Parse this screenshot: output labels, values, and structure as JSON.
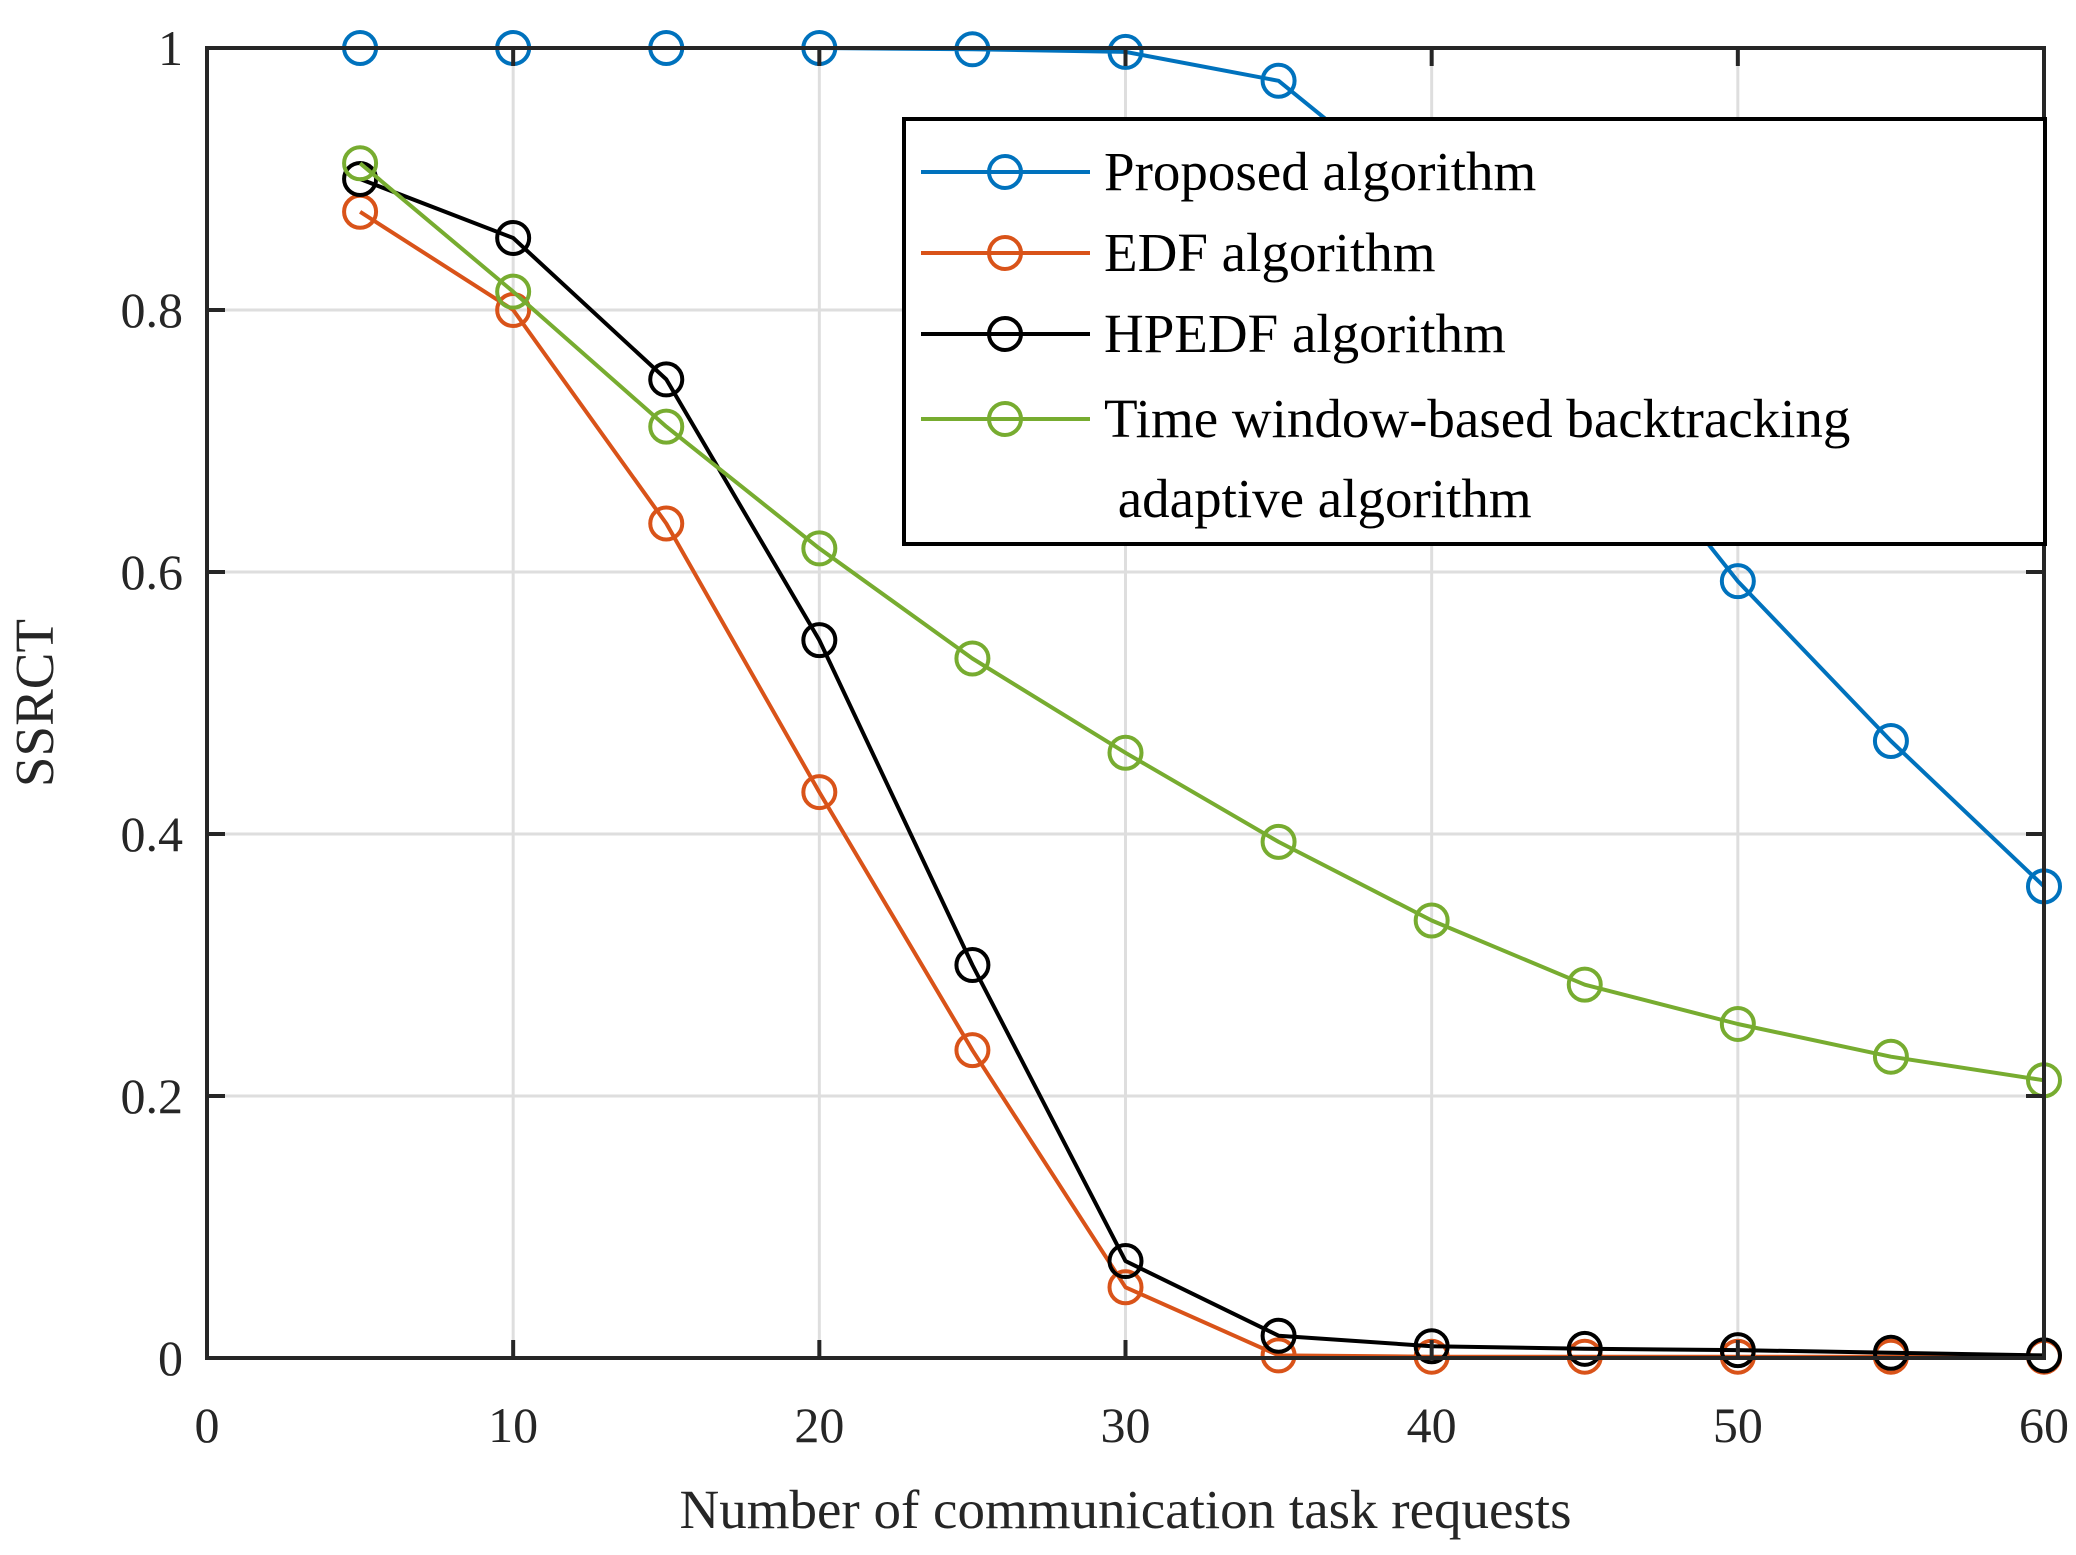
{
  "chart_data": {
    "type": "line",
    "title": "",
    "xlabel": "Number of communication task requests",
    "ylabel": "SSRCT",
    "xlim": [
      0,
      60
    ],
    "ylim": [
      0,
      1
    ],
    "xticks": [
      0,
      10,
      20,
      30,
      40,
      50,
      60
    ],
    "yticks": [
      0,
      0.2,
      0.4,
      0.6,
      0.8,
      1
    ],
    "xtick_labels": [
      "0",
      "10",
      "20",
      "30",
      "40",
      "50",
      "60"
    ],
    "ytick_labels": [
      "0",
      "0.2",
      "0.4",
      "0.6",
      "0.8",
      "1"
    ],
    "grid": true,
    "legend_position": "top-right",
    "x": [
      5,
      10,
      15,
      20,
      25,
      30,
      35,
      40,
      45,
      50,
      55,
      60
    ],
    "series": [
      {
        "name": "Proposed algorithm",
        "color": "#0072BD",
        "marker": "circle",
        "values": [
          1.0,
          1.0,
          1.0,
          1.0,
          0.999,
          0.997,
          0.975,
          0.88,
          0.74,
          0.593,
          0.471,
          0.36
        ]
      },
      {
        "name": "EDF algorithm",
        "color": "#D95319",
        "marker": "circle",
        "values": [
          0.875,
          0.8,
          0.637,
          0.432,
          0.235,
          0.054,
          0.002,
          0.001,
          0.001,
          0.001,
          0.001,
          0.001
        ]
      },
      {
        "name": "HPEDF algorithm",
        "color": "#000000",
        "marker": "circle",
        "values": [
          0.9,
          0.855,
          0.747,
          0.548,
          0.3,
          0.074,
          0.017,
          0.009,
          0.007,
          0.006,
          0.004,
          0.002
        ]
      },
      {
        "name": "Time window-based backtracking\n adaptive algorithm",
        "color": "#77AC30",
        "marker": "circle",
        "values": [
          0.912,
          0.814,
          0.711,
          0.618,
          0.534,
          0.462,
          0.394,
          0.334,
          0.285,
          0.255,
          0.23,
          0.212
        ]
      }
    ]
  }
}
